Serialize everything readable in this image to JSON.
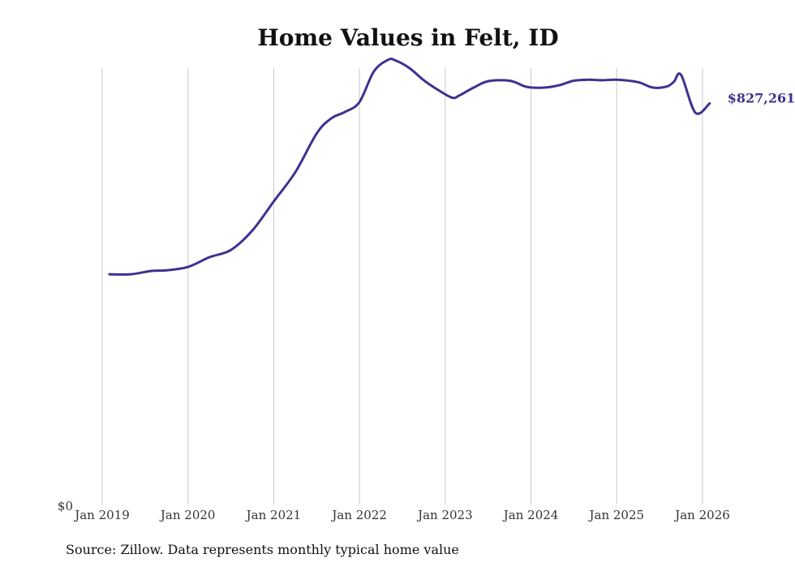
{
  "chart_data": {
    "type": "line",
    "title": "Home Values in Felt, ID",
    "xlabel": "",
    "ylabel": "",
    "y_tick_labels": [
      "$0"
    ],
    "ylim": [
      0,
      900000
    ],
    "x_tick_labels": [
      "Jan 2019",
      "Jan 2020",
      "Jan 2021",
      "Jan 2022",
      "Jan 2023",
      "Jan 2024",
      "Jan 2025",
      "Jan 2026"
    ],
    "xlim": [
      2019.0,
      2026.0
    ],
    "grid": "vertical",
    "series": [
      {
        "name": "Felt, ID",
        "color": "#3d3290",
        "x": [
          2019.083,
          2019.333,
          2019.583,
          2019.75,
          2020.0,
          2020.25,
          2020.5,
          2020.75,
          2021.0,
          2021.25,
          2021.5,
          2021.667,
          2021.833,
          2022.0,
          2022.167,
          2022.333,
          2022.417,
          2022.583,
          2022.75,
          2022.917,
          2023.083,
          2023.167,
          2023.333,
          2023.5,
          2023.75,
          2023.917,
          2024.0,
          2024.167,
          2024.333,
          2024.5,
          2024.667,
          2024.833,
          2025.0,
          2025.25,
          2025.417,
          2025.583,
          2025.667,
          2025.75,
          2025.917,
          2026.083
        ],
        "values": [
          475000,
          475000,
          482000,
          483000,
          490000,
          510000,
          525000,
          565000,
          625000,
          685000,
          765000,
          796000,
          810000,
          830000,
          893000,
          917000,
          916000,
          900000,
          875000,
          855000,
          839000,
          844000,
          860000,
          873000,
          874000,
          863000,
          860000,
          860000,
          865000,
          874000,
          876000,
          875000,
          876000,
          871000,
          860000,
          862000,
          872000,
          886000,
          808000,
          827261
        ]
      }
    ],
    "annotations": [
      {
        "text": "$827,261",
        "color": "#3d3290"
      }
    ]
  },
  "source": "Source: Zillow. Data represents monthly typical home value"
}
